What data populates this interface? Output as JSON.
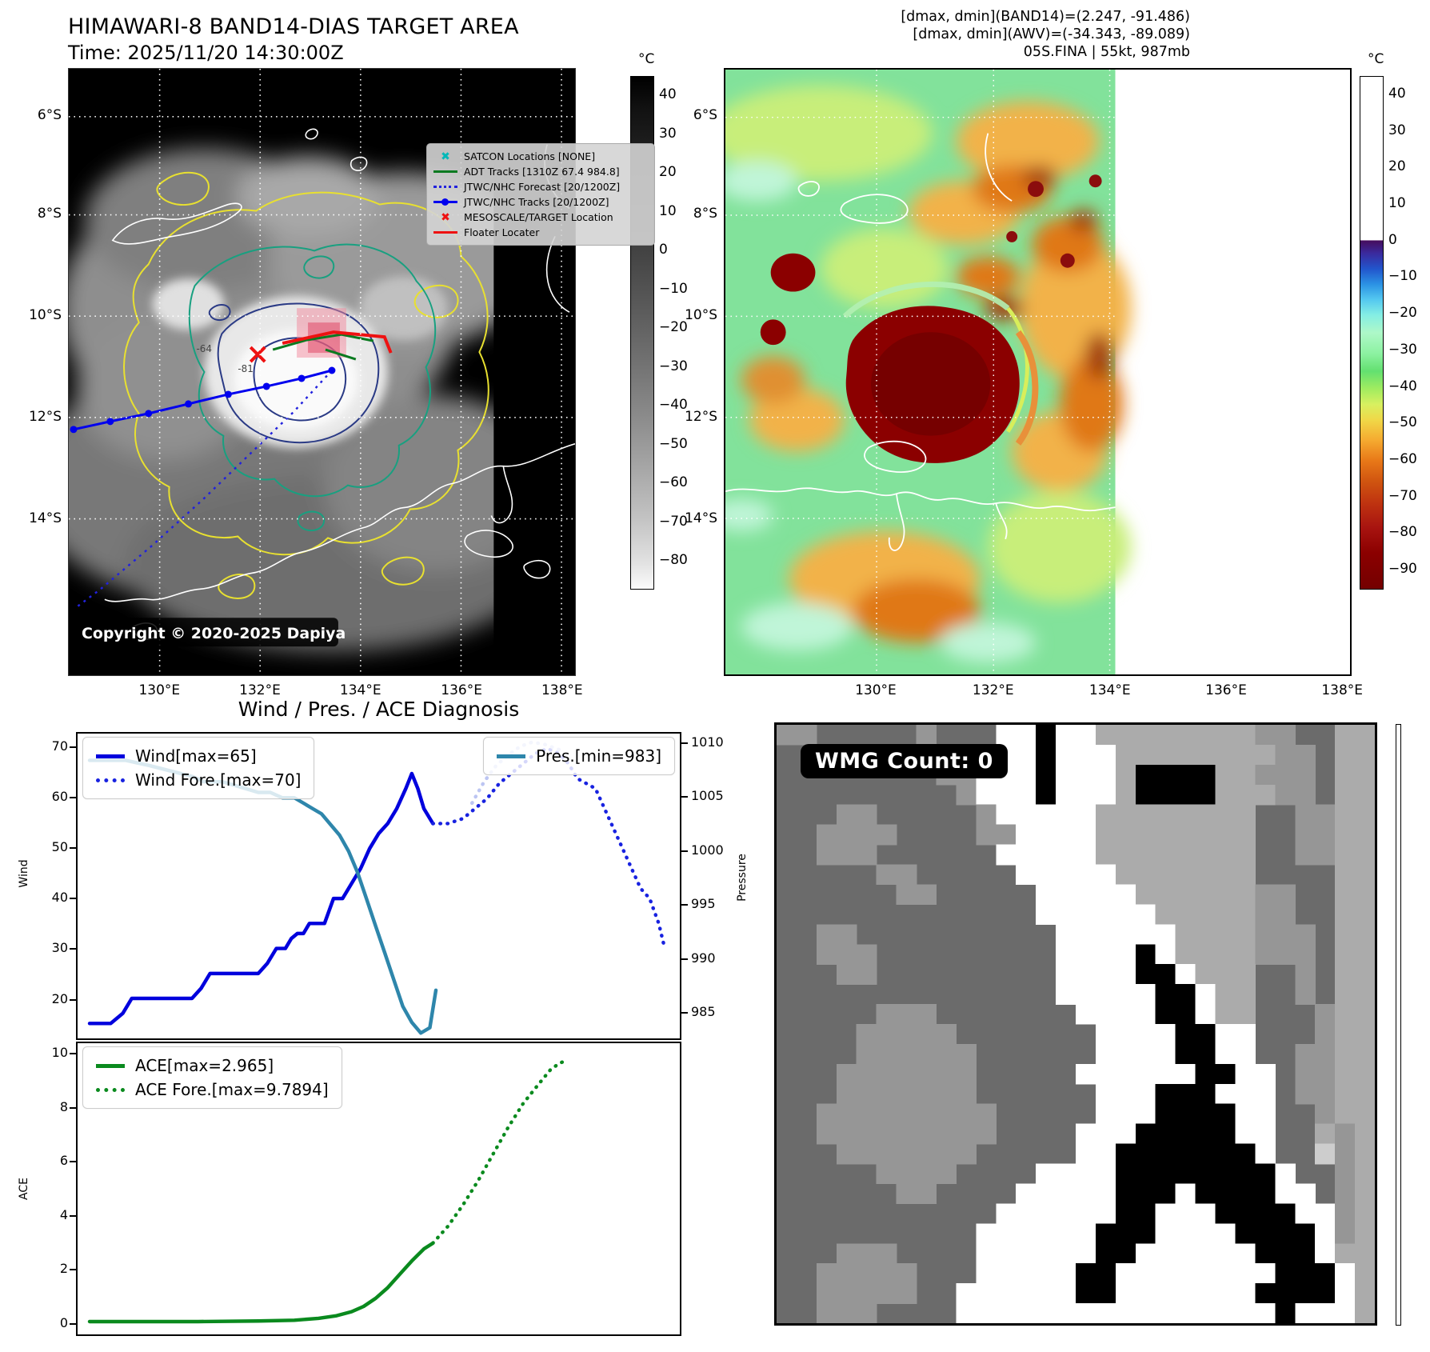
{
  "header": {
    "title": "HIMAWARI-8 BAND14-DIAS TARGET AREA",
    "time": "Time: 2025/11/20 14:30:00Z",
    "info_lines": [
      "[dmax, dmin](BAND14)=(2.247, -91.486)",
      "[dmax, dmin](AWV)=(-34.343, -89.089)",
      "05S.FINA | 55kt, 987mb"
    ]
  },
  "band14_map": {
    "lat_ticks": [
      "6°S",
      "8°S",
      "10°S",
      "12°S",
      "14°S"
    ],
    "lon_ticks": [
      "130°E",
      "132°E",
      "134°E",
      "136°E",
      "138°E"
    ],
    "copyright": "Copyright © 2020-2025 Dapiya",
    "contour_labels": [
      "-64",
      "-81"
    ],
    "colorbar": {
      "unit": "°C",
      "ticks": [
        40,
        30,
        20,
        10,
        0,
        -10,
        -20,
        -30,
        -40,
        -50,
        -60,
        -70,
        -80
      ]
    },
    "legend": [
      {
        "label": "SATCON Locations [NONE]",
        "marker": "x",
        "color": "#00b8b8"
      },
      {
        "label": "ADT Tracks [1310Z 67.4 984.8]",
        "marker": "line",
        "color": "#0a7a20"
      },
      {
        "label": "JTWC/NHC Forecast [20/1200Z]",
        "marker": "dotted",
        "color": "#2222dd"
      },
      {
        "label": "JTWC/NHC Tracks [20/1200Z]",
        "marker": "line-dot",
        "color": "#0000ee"
      },
      {
        "label": "MESOSCALE/TARGET Location",
        "marker": "X",
        "color": "#ee1111"
      },
      {
        "label": "Floater Locater",
        "marker": "line",
        "color": "#ee1111"
      }
    ]
  },
  "awv_map": {
    "lat_ticks": [
      "6°S",
      "8°S",
      "10°S",
      "12°S",
      "14°S"
    ],
    "lon_ticks": [
      "130°E",
      "132°E",
      "134°E",
      "136°E",
      "138°E"
    ],
    "colorbar": {
      "unit": "°C",
      "ticks": [
        40,
        30,
        20,
        10,
        0,
        -10,
        -20,
        -30,
        -40,
        -50,
        -60,
        -70,
        -80,
        -90
      ]
    }
  },
  "diagnosis_title": "Wind / Pres. / ACE Diagnosis",
  "chart_data": [
    {
      "id": "wind_pres",
      "type": "line",
      "title": "Wind / Pres. / ACE Diagnosis",
      "y_left": {
        "label": "Wind",
        "ticks": [
          70,
          60,
          50,
          40,
          30,
          20
        ],
        "range": [
          12,
          73
        ]
      },
      "y_right": {
        "label": "Pressure",
        "ticks": [
          1010,
          1005,
          1000,
          995,
          990,
          985
        ],
        "range": [
          982.5,
          1011
        ]
      },
      "series": [
        {
          "name": "Wind[max=65]",
          "axis": "left",
          "style": "solid",
          "color": "#0000dd",
          "legend": true,
          "x": [
            0.02,
            0.055,
            0.075,
            0.09,
            0.13,
            0.19,
            0.205,
            0.22,
            0.3,
            0.315,
            0.33,
            0.345,
            0.355,
            0.365,
            0.375,
            0.385,
            0.395,
            0.41,
            0.425,
            0.44,
            0.455,
            0.47,
            0.485,
            0.5,
            0.515,
            0.53,
            0.545,
            0.555,
            0.565,
            0.575,
            0.59
          ],
          "y": [
            15,
            15,
            17,
            20,
            20,
            20,
            22,
            25,
            25,
            27,
            30,
            30,
            32,
            33,
            33,
            35,
            35,
            35,
            40,
            40,
            43,
            46,
            50,
            53,
            55,
            58,
            62,
            65,
            62,
            58,
            55
          ]
        },
        {
          "name": "Wind Fore.[max=70]",
          "axis": "left",
          "style": "dotted",
          "color": "#1822e0",
          "legend": true,
          "x": [
            0.59,
            0.615,
            0.64,
            0.66,
            0.68,
            0.7,
            0.72,
            0.74,
            0.76,
            0.78,
            0.8,
            0.815,
            0.83,
            0.845,
            0.86,
            0.875,
            0.89,
            0.905,
            0.92,
            0.935,
            0.95,
            0.965,
            0.975
          ],
          "y": [
            55,
            55,
            56,
            58,
            60,
            63,
            65,
            67,
            69,
            70,
            69,
            67,
            64,
            63,
            62,
            58,
            54,
            50,
            46,
            42,
            40,
            35,
            30
          ]
        },
        {
          "name": "Pres.[min=983]",
          "axis": "right",
          "style": "solid",
          "color": "#2e86ab",
          "legend": true,
          "x": [
            0.02,
            0.08,
            0.12,
            0.155,
            0.19,
            0.21,
            0.24,
            0.27,
            0.3,
            0.32,
            0.34,
            0.36,
            0.375,
            0.39,
            0.405,
            0.42,
            0.435,
            0.45,
            0.465,
            0.48,
            0.495,
            0.51,
            0.525,
            0.54,
            0.555,
            0.57,
            0.585,
            0.595
          ],
          "y": [
            1008.5,
            1008.5,
            1008,
            1007.5,
            1007,
            1006.5,
            1006.5,
            1006,
            1005.5,
            1005.5,
            1005,
            1005,
            1004.5,
            1004,
            1003.5,
            1002.5,
            1001.5,
            1000,
            998,
            995.5,
            993,
            990.5,
            988,
            985.5,
            984,
            983,
            983.5,
            987
          ]
        },
        {
          "name": "",
          "axis": "right",
          "style": "dotted",
          "color": "#bcc5f2",
          "legend": false,
          "x": [
            0.655,
            0.675,
            0.695,
            0.715,
            0.735,
            0.755,
            0.775,
            0.8
          ],
          "y": [
            1004.5,
            1006.5,
            1008,
            1009,
            1009.8,
            1010.2,
            1010,
            1009.5
          ]
        }
      ]
    },
    {
      "id": "ace",
      "type": "line",
      "title": "ACE",
      "y_left": {
        "label": "ACE",
        "ticks": [
          10,
          8,
          6,
          4,
          2,
          0
        ],
        "range": [
          -0.45,
          10.45
        ]
      },
      "series": [
        {
          "name": "ACE[max=2.965]",
          "axis": "left",
          "style": "solid",
          "color": "#0a8a1e",
          "legend": true,
          "x": [
            0.02,
            0.1,
            0.2,
            0.3,
            0.36,
            0.4,
            0.43,
            0.455,
            0.475,
            0.495,
            0.515,
            0.535,
            0.555,
            0.575,
            0.59
          ],
          "y": [
            0.03,
            0.03,
            0.03,
            0.05,
            0.08,
            0.15,
            0.25,
            0.4,
            0.6,
            0.9,
            1.3,
            1.8,
            2.3,
            2.75,
            2.965
          ]
        },
        {
          "name": "ACE Fore.[max=9.7894]",
          "axis": "left",
          "style": "dotted",
          "color": "#0a8a1e",
          "legend": true,
          "x": [
            0.59,
            0.615,
            0.64,
            0.665,
            0.69,
            0.715,
            0.74,
            0.765,
            0.785,
            0.8,
            0.81
          ],
          "y": [
            2.965,
            3.6,
            4.4,
            5.3,
            6.3,
            7.3,
            8.2,
            8.9,
            9.45,
            9.7,
            9.79
          ]
        }
      ]
    }
  ],
  "wmg": {
    "count_label": "WMG Count: 0",
    "palette": {
      "d": "#6b6b6b",
      "m": "#969696",
      "l": "#ababab",
      "L": "#cdcdcd",
      "w": "#ffffff",
      "k": "#000000"
    },
    "bitmap": [
      "mmdddddmdddwwkwwllllllllmmddll",
      "dddddmmmddwwwkwwwllllllllmmdll",
      "ddddddddmmwwwkwwwlkkkkllmmmdll",
      "dddddddddmwwwkwwwlkkkklllmmdll",
      "dddmmdddddmwwwwwllllllllddmmll",
      "ddmmmmddddmmwwwwllllllllddmmll",
      "ddmmmddddddwwwwwllllllllddmmll",
      "dddddmmdddddwwwwwlllllllddddll",
      "ddddddmmdddddwwwwwllllllmmddll",
      "dddddddddddddwwwwwwlllllmmddll",
      "ddmmddddddddddwwwwwwllllmmmdll",
      "ddmmmdddddddddwwwwkwllllmmmdll",
      "dddmmdddddddddwwwwkkwlllddmdll",
      "ddddddddddddddwwwwwkkwllddmdll",
      "dddddmmmdddddddwwwwkkwlldddmll",
      "ddddmmmmmdddddddwwwwkkwwdddmll",
      "ddddmmmmmmddddddwwwwkkwwddmmll",
      "dddmmmmmmmdddddwwwwwwkkwwdmmll",
      "dddmmmmmmmddddddwwwkkkwwwdmmll",
      "ddmmmmmmmmmdddddwwwkkkkwwddmll",
      "ddmmmmmmmmmddddwwwkkkkkwwddlml",
      "dddmmmmmmmdddddwwkkkkkkkwddLml",
      "dddddmmmmddddwwwwkkkkkkkkwddml",
      "ddddddmmddddwwwwwkkkwkkkkwwdml",
      "dddddddddddwwwwwwkkwwwkkkkwwml",
      "ddddddddddwwwwwwkkkwwwwkkkkwml",
      "dddmmmddddwwwwwwkkwwwwwwkkkwll",
      "ddmmmmmdddwwwwwkkwwwwwwwwkkkwl",
      "ddmmmmmddwwwwwwkkwwwwwwwkkkkwl",
      "ddmmmddddwwwwwwwwwwwwwwwwkwwwl"
    ]
  }
}
